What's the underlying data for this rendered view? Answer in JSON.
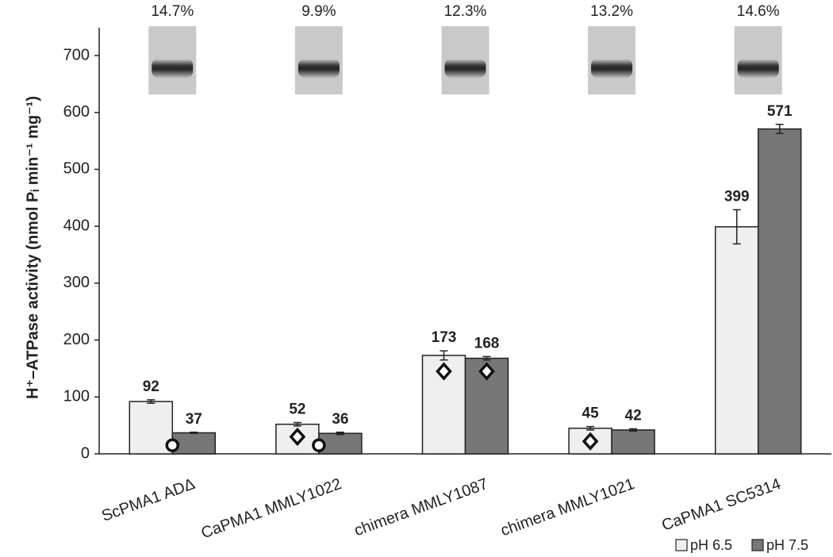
{
  "chart_data": {
    "type": "bar",
    "y_label": "H⁺–ATPase activity (nmol Pᵢ min⁻¹ mg⁻¹)",
    "categories": [
      "ScPMA1 ADΔ",
      "CaPMA1 MMLY1022",
      "chimera MMLY1087",
      "chimera MMLY1021",
      "CaPMA1 SC5314"
    ],
    "gel_labels": [
      "14.7%",
      "9.9%",
      "12.3%",
      "13.2%",
      "14.6%"
    ],
    "series": [
      {
        "name": "pH 6.5",
        "color": "#efefef",
        "values": [
          92,
          52,
          173,
          45,
          399
        ],
        "errors": [
          3,
          3,
          8,
          3,
          30
        ]
      },
      {
        "name": "pH 7.5",
        "color": "#777777",
        "values": [
          37,
          36,
          168,
          42,
          571
        ],
        "errors": [
          1,
          2,
          3,
          2,
          8
        ]
      }
    ],
    "points": [
      {
        "category": 0,
        "shape": "circle",
        "value": 15
      },
      {
        "category": 1,
        "series": 0,
        "shape": "diamond",
        "value": 30
      },
      {
        "category": 1,
        "shape": "circle",
        "value": 15
      },
      {
        "category": 2,
        "series": 0,
        "shape": "diamond",
        "value": 145
      },
      {
        "category": 2,
        "series": 1,
        "shape": "diamond",
        "value": 145
      },
      {
        "category": 3,
        "series": 0,
        "shape": "diamond",
        "value": 22
      }
    ],
    "ylim": [
      0,
      700
    ],
    "yticks": [
      0,
      100,
      200,
      300,
      400,
      500,
      600,
      700
    ],
    "legend": "bottom-right"
  }
}
